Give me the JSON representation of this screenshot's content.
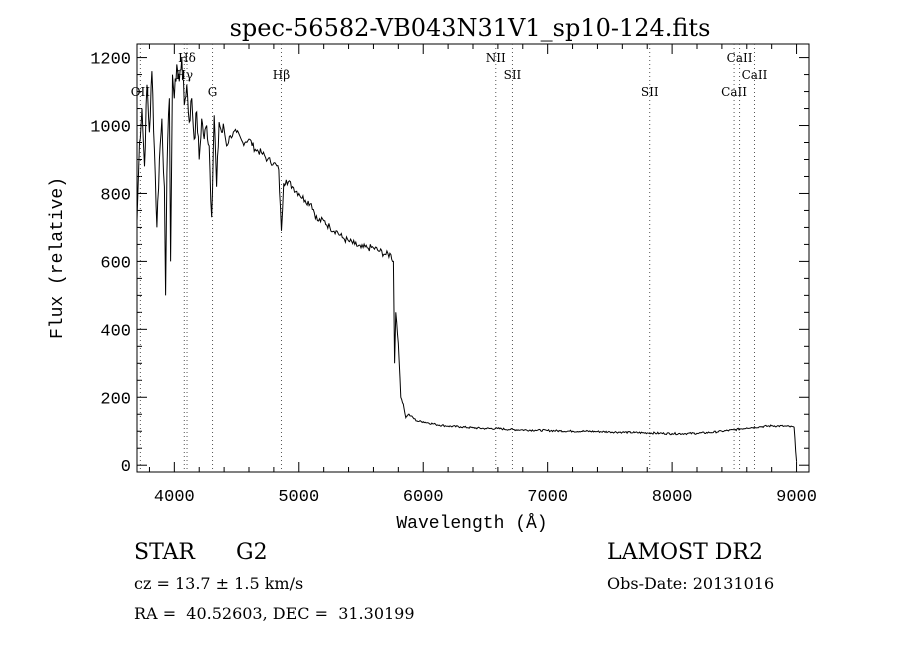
{
  "chart_data": {
    "type": "line",
    "title": "spec-56582-VB043N31V1_sp10-124.fits",
    "xlabel": "Wavelength (Å)",
    "ylabel": "Flux (relative)",
    "xlim": [
      3700,
      9100
    ],
    "ylim": [
      -20,
      1240
    ],
    "x_ticks": [
      4000,
      5000,
      6000,
      7000,
      8000,
      9000
    ],
    "y_ticks": [
      0,
      200,
      400,
      600,
      800,
      1000,
      1200
    ],
    "line_color": "#000000",
    "series": [
      {
        "name": "flux",
        "points": [
          [
            3700,
            720
          ],
          [
            3720,
            950
          ],
          [
            3740,
            1050
          ],
          [
            3760,
            880
          ],
          [
            3780,
            1120
          ],
          [
            3800,
            980
          ],
          [
            3820,
            1160
          ],
          [
            3840,
            930
          ],
          [
            3860,
            700
          ],
          [
            3880,
            900
          ],
          [
            3900,
            1020
          ],
          [
            3920,
            820
          ],
          [
            3930,
            500
          ],
          [
            3940,
            860
          ],
          [
            3960,
            1080
          ],
          [
            3970,
            600
          ],
          [
            3985,
            1150
          ],
          [
            4000,
            1080
          ],
          [
            4020,
            1180
          ],
          [
            4040,
            1130
          ],
          [
            4060,
            1200
          ],
          [
            4080,
            1060
          ],
          [
            4100,
            1120
          ],
          [
            4120,
            1010
          ],
          [
            4140,
            1080
          ],
          [
            4160,
            960
          ],
          [
            4180,
            1040
          ],
          [
            4200,
            900
          ],
          [
            4220,
            1020
          ],
          [
            4240,
            960
          ],
          [
            4260,
            1000
          ],
          [
            4280,
            940
          ],
          [
            4300,
            730
          ],
          [
            4320,
            1030
          ],
          [
            4340,
            820
          ],
          [
            4360,
            1010
          ],
          [
            4380,
            980
          ],
          [
            4400,
            990
          ],
          [
            4420,
            940
          ],
          [
            4450,
            970
          ],
          [
            4500,
            980
          ],
          [
            4550,
            950
          ],
          [
            4600,
            960
          ],
          [
            4650,
            930
          ],
          [
            4700,
            920
          ],
          [
            4750,
            900
          ],
          [
            4800,
            890
          ],
          [
            4840,
            870
          ],
          [
            4861,
            690
          ],
          [
            4880,
            830
          ],
          [
            4900,
            840
          ],
          [
            4950,
            820
          ],
          [
            5000,
            800
          ],
          [
            5050,
            780
          ],
          [
            5100,
            770
          ],
          [
            5150,
            720
          ],
          [
            5200,
            720
          ],
          [
            5250,
            700
          ],
          [
            5300,
            690
          ],
          [
            5350,
            670
          ],
          [
            5400,
            660
          ],
          [
            5450,
            650
          ],
          [
            5500,
            640
          ],
          [
            5550,
            640
          ],
          [
            5600,
            640
          ],
          [
            5650,
            630
          ],
          [
            5700,
            620
          ],
          [
            5740,
            620
          ],
          [
            5760,
            600
          ],
          [
            5770,
            300
          ],
          [
            5780,
            450
          ],
          [
            5800,
            360
          ],
          [
            5820,
            200
          ],
          [
            5840,
            180
          ],
          [
            5860,
            140
          ],
          [
            5880,
            150
          ],
          [
            5900,
            145
          ],
          [
            5950,
            130
          ],
          [
            6000,
            128
          ],
          [
            6100,
            120
          ],
          [
            6200,
            115
          ],
          [
            6300,
            113
          ],
          [
            6400,
            110
          ],
          [
            6500,
            108
          ],
          [
            6600,
            108
          ],
          [
            6700,
            105
          ],
          [
            6800,
            104
          ],
          [
            6900,
            103
          ],
          [
            7000,
            102
          ],
          [
            7100,
            101
          ],
          [
            7200,
            100
          ],
          [
            7300,
            100
          ],
          [
            7400,
            99
          ],
          [
            7500,
            98
          ],
          [
            7600,
            97
          ],
          [
            7700,
            96
          ],
          [
            7800,
            95
          ],
          [
            7900,
            94
          ],
          [
            8000,
            93
          ],
          [
            8100,
            93
          ],
          [
            8200,
            94
          ],
          [
            8300,
            96
          ],
          [
            8400,
            100
          ],
          [
            8500,
            104
          ],
          [
            8600,
            110
          ],
          [
            8700,
            113
          ],
          [
            8800,
            116
          ],
          [
            8900,
            115
          ],
          [
            8980,
            112
          ],
          [
            9000,
            10
          ]
        ]
      }
    ],
    "lines": [
      {
        "label": "OII",
        "x": 3727,
        "row": 3
      },
      {
        "label": "Hδ",
        "x": 4102,
        "row": 1
      },
      {
        "label": "Hγ",
        "x": 4080,
        "row": 2
      },
      {
        "label": "G",
        "x": 4307,
        "row": 3
      },
      {
        "label": "Hβ",
        "x": 4861,
        "row": 2
      },
      {
        "label": "NII",
        "x": 6583,
        "row": 1
      },
      {
        "label": "SII",
        "x": 6717,
        "row": 2
      },
      {
        "label": "SII",
        "x": 7820,
        "row": 3
      },
      {
        "label": "CaII",
        "x": 8542,
        "row": 1
      },
      {
        "label": "CaII",
        "x": 8662,
        "row": 2
      },
      {
        "label": "CaII",
        "x": 8498,
        "row": 3
      }
    ]
  },
  "info": {
    "object_class": "STAR",
    "subclass": "G2",
    "survey": "LAMOST DR2",
    "redshift": "cz = 13.7 ± 1.5 km/s",
    "obs_date": "Obs-Date: 20131016",
    "coords": "RA =  40.52603, DEC =  31.30199"
  }
}
